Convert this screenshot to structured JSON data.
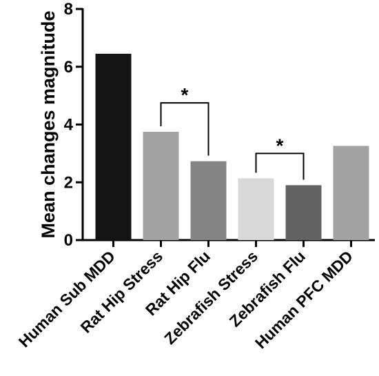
{
  "chart_data": {
    "type": "bar",
    "title": "",
    "xlabel": "",
    "ylabel": "Mean changes magnitude",
    "ylim": [
      0,
      8
    ],
    "yticks": [
      0,
      2,
      4,
      6,
      8
    ],
    "grid": false,
    "categories": [
      "Human Sub MDD",
      "Rat Hip Stress",
      "Rat Hip Flu",
      "Zebrafish Stress",
      "Zebrafish Flu",
      "Human PFC MDD"
    ],
    "values": [
      6.45,
      3.75,
      2.73,
      2.14,
      1.9,
      3.26
    ],
    "colors": [
      "#131313",
      "#a3a3a3",
      "#848484",
      "#d9d9d9",
      "#636363",
      "#a3a3a3"
    ],
    "annotations": [
      {
        "text": "*",
        "from": "Rat Hip Stress",
        "to": "Rat Hip Flu",
        "y": 4.75
      },
      {
        "text": "*",
        "from": "Zebrafish Stress",
        "to": "Zebrafish Flu",
        "y": 3.0
      }
    ]
  }
}
